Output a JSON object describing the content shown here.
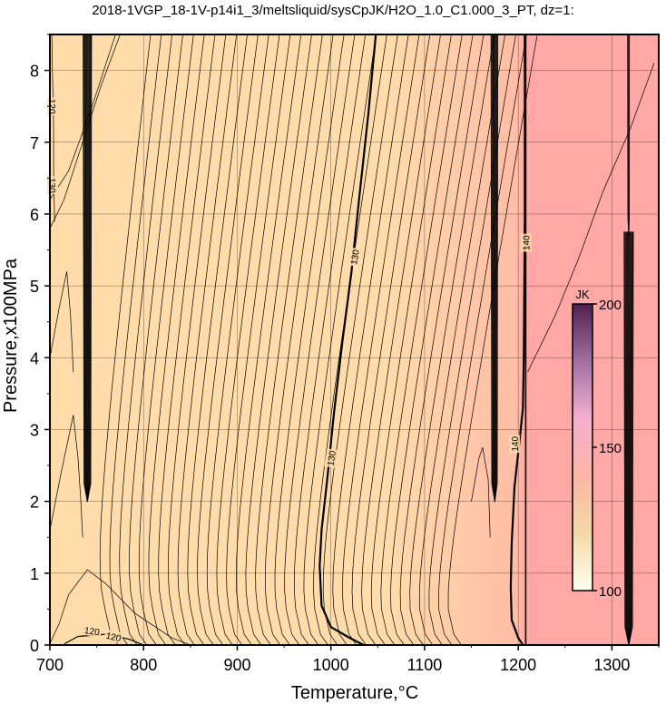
{
  "chart_data": {
    "type": "contour",
    "title": "2018-1VGP_18-1V-p14i1_3/meltsliquid/sysCpJK/H2O_1.0_C1.000_3_PT, dz=1:",
    "xlabel": "Temperature,°C",
    "ylabel": "Pressure,x100MPa",
    "xlim": [
      700,
      1350
    ],
    "ylim": [
      0,
      8.5
    ],
    "x_ticks": [
      700,
      800,
      900,
      1000,
      1100,
      1200,
      1300
    ],
    "y_ticks": [
      0,
      1,
      2,
      3,
      4,
      5,
      6,
      7,
      8
    ],
    "grid": true,
    "z_interval": 1,
    "contour_labels": [
      {
        "text": "120",
        "x": 745,
        "y": 0.2,
        "angle": 8
      },
      {
        "text": "120",
        "x": 768,
        "y": 0.12,
        "angle": 12
      },
      {
        "text": "120",
        "x": 703,
        "y": 7.5,
        "angle": 90
      },
      {
        "text": "130",
        "x": 703,
        "y": 6.4,
        "angle": 90
      },
      {
        "text": "130",
        "x": 1025,
        "y": 5.4,
        "angle": -80
      },
      {
        "text": "130",
        "x": 1000,
        "y": 2.6,
        "angle": -80
      },
      {
        "text": "140",
        "x": 1208,
        "y": 5.6,
        "angle": -90
      },
      {
        "text": "140",
        "x": 1196,
        "y": 2.8,
        "angle": -90
      }
    ],
    "colorbar": {
      "label": "JK",
      "min": 100,
      "max": 200,
      "ticks": [
        100,
        150,
        200
      ],
      "colors": [
        "#fffff0",
        "#f4d9a8",
        "#fbb6a6",
        "#f4b0d0",
        "#a070a0",
        "#502050"
      ],
      "placement": "right-inside"
    },
    "background_fill": {
      "left_color": "#ffdcaa",
      "right_color": "#ffa8a6",
      "boundary_x": 1208
    }
  }
}
